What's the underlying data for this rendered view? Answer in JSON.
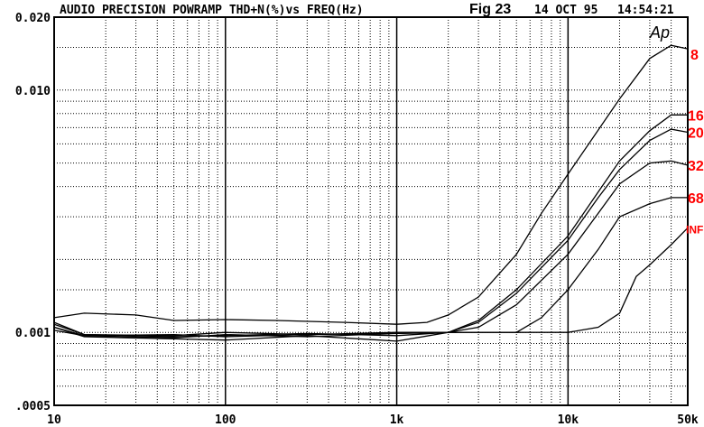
{
  "header": {
    "title": "AUDIO PRECISION POWRAMP THD+N(%)vs FREQ(Hz)",
    "figure": "Fig 23",
    "date": "14 OCT 95",
    "time": "14:54:21",
    "logo": "Ap"
  },
  "chart_data": {
    "type": "line",
    "title": "AUDIO PRECISION POWRAMP THD+N(%)vs FREQ(Hz)",
    "xlabel": "FREQ(Hz)",
    "ylabel": "THD+N(%)",
    "x_scale": "log",
    "y_scale": "log",
    "xlim": [
      10,
      50000
    ],
    "ylim": [
      0.0005,
      0.02
    ],
    "grid": true,
    "x_ticks": [
      {
        "value": 10,
        "label": "10"
      },
      {
        "value": 100,
        "label": "100"
      },
      {
        "value": 1000,
        "label": "1k"
      },
      {
        "value": 10000,
        "label": "10k"
      },
      {
        "value": 50000,
        "label": "50k"
      }
    ],
    "y_ticks": [
      {
        "value": 0.02,
        "label": "0.020"
      },
      {
        "value": 0.01,
        "label": "0.010"
      },
      {
        "value": 0.001,
        "label": "0.001"
      },
      {
        "value": 0.0005,
        "label": ".0005"
      }
    ],
    "label_color": "#ff0000",
    "line_color": "#000000",
    "series": [
      {
        "name": "8",
        "x": [
          10,
          15,
          30,
          50,
          100,
          200,
          500,
          1000,
          1500,
          2000,
          3000,
          5000,
          7000,
          10000,
          20000,
          30000,
          40000,
          50000
        ],
        "y": [
          0.00115,
          0.0012,
          0.00118,
          0.00112,
          0.00113,
          0.00112,
          0.0011,
          0.00108,
          0.0011,
          0.00118,
          0.0014,
          0.0021,
          0.0031,
          0.0045,
          0.0092,
          0.0135,
          0.0153,
          0.0148
        ]
      },
      {
        "name": "16",
        "x": [
          10,
          15,
          50,
          100,
          300,
          1000,
          2000,
          3000,
          5000,
          10000,
          15000,
          20000,
          30000,
          40000,
          50000
        ],
        "y": [
          0.0011,
          0.00098,
          0.00097,
          0.001,
          0.00098,
          0.001,
          0.001,
          0.00112,
          0.0015,
          0.0025,
          0.0038,
          0.0051,
          0.0068,
          0.0079,
          0.0079
        ]
      },
      {
        "name": "20",
        "x": [
          10,
          15,
          50,
          100,
          300,
          1000,
          2000,
          3000,
          5000,
          10000,
          15000,
          20000,
          30000,
          40000,
          50000
        ],
        "y": [
          0.00105,
          0.00097,
          0.00095,
          0.00098,
          0.00096,
          0.00099,
          0.001,
          0.0011,
          0.00145,
          0.0024,
          0.0036,
          0.0047,
          0.0062,
          0.0069,
          0.0067
        ]
      },
      {
        "name": "32",
        "x": [
          10,
          15,
          50,
          100,
          300,
          1000,
          2000,
          3000,
          5000,
          10000,
          15000,
          20000,
          30000,
          40000,
          50000
        ],
        "y": [
          0.00105,
          0.00096,
          0.00094,
          0.00093,
          0.00097,
          0.00092,
          0.001,
          0.00105,
          0.0013,
          0.0021,
          0.0031,
          0.0041,
          0.005,
          0.0051,
          0.0049
        ]
      },
      {
        "name": "68",
        "x": [
          10,
          15,
          50,
          100,
          300,
          1000,
          2000,
          5000,
          7000,
          10000,
          15000,
          20000,
          30000,
          40000,
          50000
        ],
        "y": [
          0.00108,
          0.00098,
          0.00096,
          0.00097,
          0.00099,
          0.00097,
          0.001,
          0.001,
          0.00115,
          0.0015,
          0.0022,
          0.003,
          0.0034,
          0.0036,
          0.0036
        ]
      },
      {
        "name": "INF",
        "x": [
          10,
          15,
          50,
          100,
          300,
          1000,
          2000,
          5000,
          10000,
          15000,
          20000,
          25000,
          30000,
          40000,
          50000
        ],
        "y": [
          0.00102,
          0.00097,
          0.00098,
          0.00096,
          0.00098,
          0.00099,
          0.001,
          0.001,
          0.001,
          0.00105,
          0.0012,
          0.0017,
          0.0019,
          0.0023,
          0.0027
        ]
      }
    ]
  }
}
